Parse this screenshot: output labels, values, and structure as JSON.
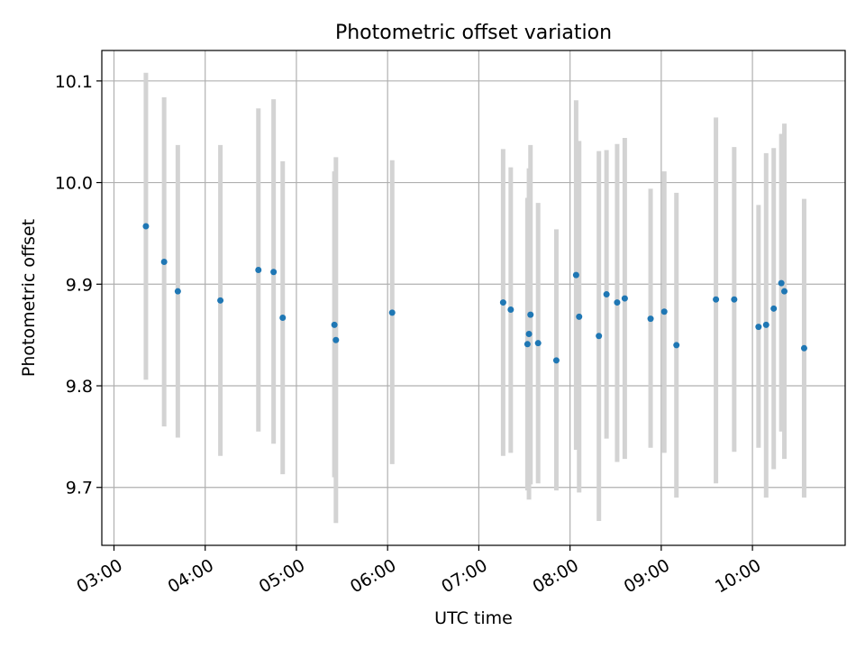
{
  "chart_data": {
    "type": "scatter",
    "title": "Photometric offset variation",
    "xlabel": "UTC time",
    "ylabel": "Photometric offset",
    "x_axis_type": "time",
    "xlim": [
      "02:52",
      "11:01"
    ],
    "ylim": [
      9.643,
      10.13
    ],
    "x_ticks": [
      "03:00",
      "04:00",
      "05:00",
      "06:00",
      "07:00",
      "08:00",
      "09:00",
      "10:00"
    ],
    "y_ticks": [
      9.7,
      9.8,
      9.9,
      10.0,
      10.1
    ],
    "y_tick_labels": [
      "9.7",
      "9.8",
      "9.9",
      "10.0",
      "10.1"
    ],
    "grid": true,
    "legend": "none",
    "marker_color": "#1f77b4",
    "errorbar_color": "#d3d3d3",
    "points": [
      {
        "time": "03:21",
        "y": 9.957,
        "ylow": 9.806,
        "yhigh": 10.108
      },
      {
        "time": "03:33",
        "y": 9.922,
        "ylow": 9.76,
        "yhigh": 10.084
      },
      {
        "time": "03:42",
        "y": 9.893,
        "ylow": 9.749,
        "yhigh": 10.037
      },
      {
        "time": "04:10",
        "y": 9.884,
        "ylow": 9.731,
        "yhigh": 10.037
      },
      {
        "time": "04:35",
        "y": 9.914,
        "ylow": 9.755,
        "yhigh": 10.073
      },
      {
        "time": "04:45",
        "y": 9.912,
        "ylow": 9.743,
        "yhigh": 10.082
      },
      {
        "time": "04:51",
        "y": 9.867,
        "ylow": 9.713,
        "yhigh": 10.021
      },
      {
        "time": "05:25",
        "y": 9.86,
        "ylow": 9.71,
        "yhigh": 10.011
      },
      {
        "time": "05:26",
        "y": 9.845,
        "ylow": 9.665,
        "yhigh": 10.025
      },
      {
        "time": "06:03",
        "y": 9.872,
        "ylow": 9.723,
        "yhigh": 10.022
      },
      {
        "time": "07:16",
        "y": 9.882,
        "ylow": 9.731,
        "yhigh": 10.033
      },
      {
        "time": "07:21",
        "y": 9.875,
        "ylow": 9.734,
        "yhigh": 10.015
      },
      {
        "time": "07:32",
        "y": 9.841,
        "ylow": 9.697,
        "yhigh": 9.985
      },
      {
        "time": "07:33",
        "y": 9.851,
        "ylow": 9.688,
        "yhigh": 10.014
      },
      {
        "time": "07:34",
        "y": 9.87,
        "ylow": 9.703,
        "yhigh": 10.037
      },
      {
        "time": "07:39",
        "y": 9.842,
        "ylow": 9.704,
        "yhigh": 9.98
      },
      {
        "time": "07:51",
        "y": 9.825,
        "ylow": 9.697,
        "yhigh": 9.954
      },
      {
        "time": "08:04",
        "y": 9.909,
        "ylow": 9.737,
        "yhigh": 10.081
      },
      {
        "time": "08:06",
        "y": 9.868,
        "ylow": 9.695,
        "yhigh": 10.041
      },
      {
        "time": "08:19",
        "y": 9.849,
        "ylow": 9.667,
        "yhigh": 10.031
      },
      {
        "time": "08:24",
        "y": 9.89,
        "ylow": 9.748,
        "yhigh": 10.032
      },
      {
        "time": "08:31",
        "y": 9.882,
        "ylow": 9.725,
        "yhigh": 10.038
      },
      {
        "time": "08:36",
        "y": 9.886,
        "ylow": 9.728,
        "yhigh": 10.044
      },
      {
        "time": "08:53",
        "y": 9.866,
        "ylow": 9.739,
        "yhigh": 9.994
      },
      {
        "time": "09:02",
        "y": 9.873,
        "ylow": 9.734,
        "yhigh": 10.011
      },
      {
        "time": "09:10",
        "y": 9.84,
        "ylow": 9.69,
        "yhigh": 9.99
      },
      {
        "time": "09:36",
        "y": 9.885,
        "ylow": 9.704,
        "yhigh": 10.064
      },
      {
        "time": "09:48",
        "y": 9.885,
        "ylow": 9.735,
        "yhigh": 10.035
      },
      {
        "time": "10:04",
        "y": 9.858,
        "ylow": 9.739,
        "yhigh": 9.978
      },
      {
        "time": "10:09",
        "y": 9.86,
        "ylow": 9.69,
        "yhigh": 10.029
      },
      {
        "time": "10:14",
        "y": 9.876,
        "ylow": 9.718,
        "yhigh": 10.034
      },
      {
        "time": "10:19",
        "y": 9.901,
        "ylow": 9.755,
        "yhigh": 10.048
      },
      {
        "time": "10:21",
        "y": 9.893,
        "ylow": 9.728,
        "yhigh": 10.058
      },
      {
        "time": "10:34",
        "y": 9.837,
        "ylow": 9.69,
        "yhigh": 9.984
      }
    ]
  }
}
